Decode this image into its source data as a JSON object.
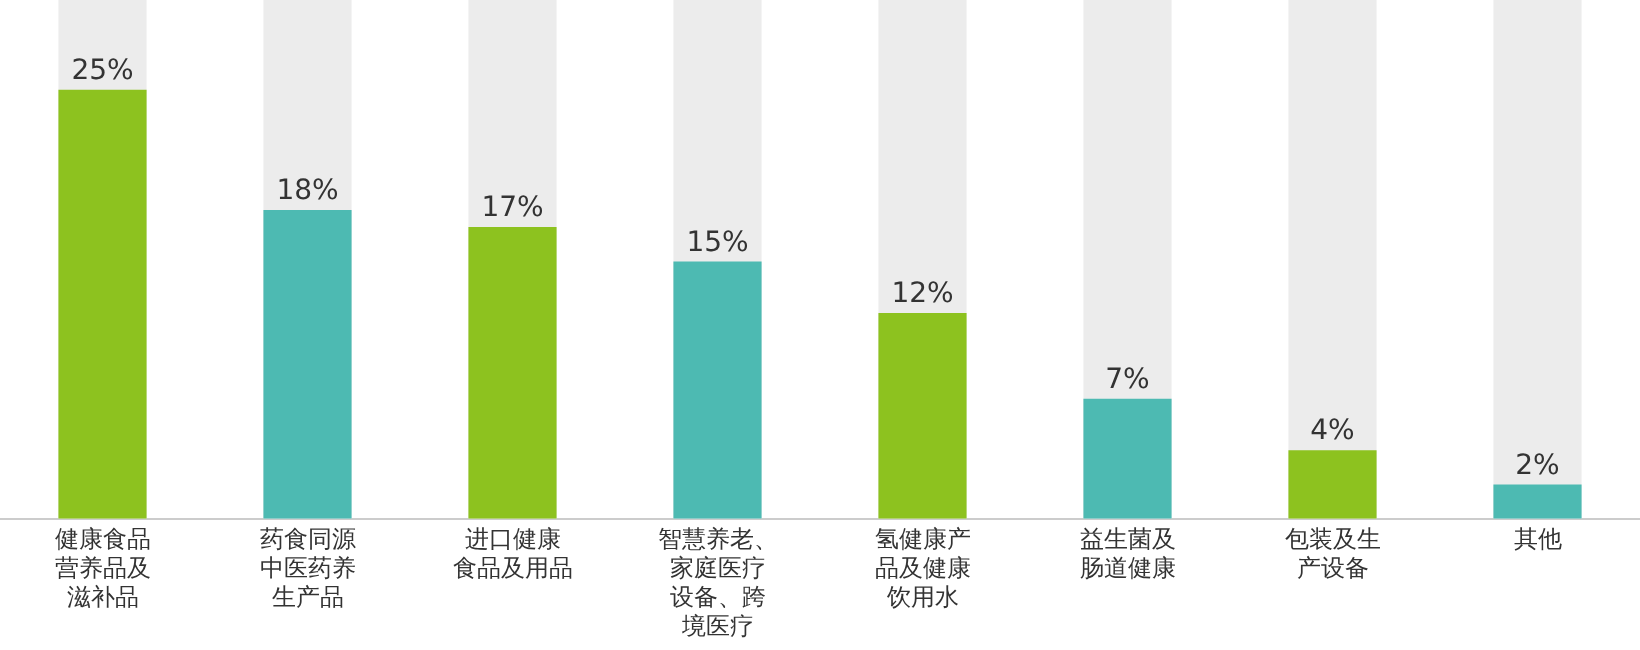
{
  "chart_data": {
    "type": "bar",
    "categories": [
      "健康食品营养品及滋补品",
      "药食同源中医药养生产品",
      "进口健康食品及用品",
      "智慧养老、家庭医疗设备、跨境医疗",
      "氢健康产品及健康饮用水",
      "益生菌及肠道健康",
      "包装及生产设备",
      "其他"
    ],
    "values": [
      25,
      18,
      17,
      15,
      12,
      7,
      4,
      2
    ],
    "colors": [
      "#8dc21f",
      "#4dbab2",
      "#8dc21f",
      "#4dbab2",
      "#8dc21f",
      "#4dbab2",
      "#8dc21f",
      "#4dbab2"
    ],
    "value_labels": [
      "25%",
      "18%",
      "17%",
      "15%",
      "12%",
      "7%",
      "4%",
      "2%"
    ],
    "grid": false,
    "legend": false
  }
}
